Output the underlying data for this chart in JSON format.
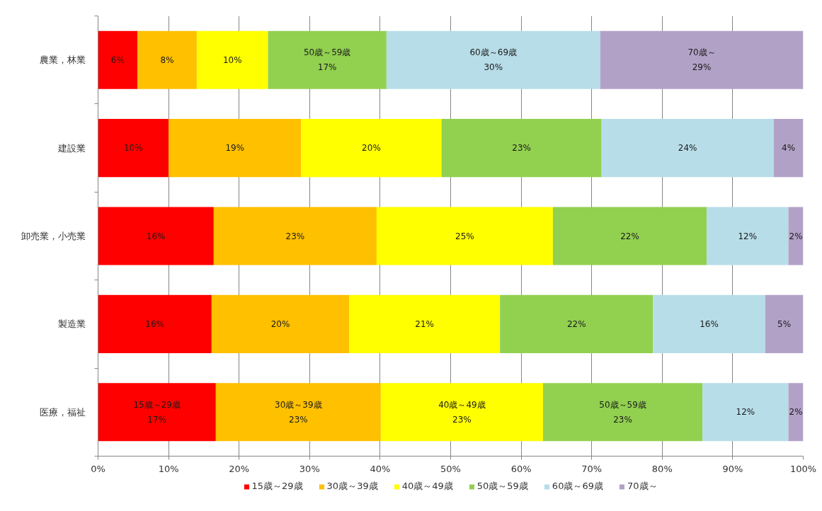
{
  "chart_data": {
    "type": "bar",
    "orientation": "horizontal",
    "stacked": true,
    "categories": [
      "農業，林業",
      "建設業",
      "卸売業，小売業",
      "製造業",
      "医療，福祉"
    ],
    "series": [
      {
        "name": "15歳～29歳",
        "color": "#ff0000",
        "values": [
          5.6,
          10.0,
          16.4,
          16.1,
          16.7
        ],
        "value_labels": [
          "6%",
          "10%",
          "16%",
          "16%",
          "15歳～29歳\n17%"
        ]
      },
      {
        "name": "30歳～39歳",
        "color": "#ffc000",
        "values": [
          8.4,
          18.8,
          23.1,
          19.5,
          23.4
        ],
        "value_labels": [
          "8%",
          "19%",
          "23%",
          "20%",
          "30歳～39歳\n23%"
        ]
      },
      {
        "name": "40歳～49歳",
        "color": "#ffff00",
        "values": [
          10.1,
          19.9,
          25.0,
          21.4,
          23.0
        ],
        "value_labels": [
          "10%",
          "20%",
          "25%",
          "21%",
          "40歳～49歳\n23%"
        ]
      },
      {
        "name": "50歳～59歳",
        "color": "#92d050",
        "values": [
          16.8,
          22.7,
          21.8,
          21.7,
          22.6
        ],
        "value_labels": [
          "50歳～59歳\n17%",
          "23%",
          "22%",
          "22%",
          "50歳～59歳\n23%"
        ]
      },
      {
        "name": "60歳～69歳",
        "color": "#b7dde8",
        "values": [
          30.3,
          24.4,
          11.6,
          15.9,
          12.2
        ],
        "value_labels": [
          "60歳～69歳\n30%",
          "24%",
          "12%",
          "16%",
          "12%"
        ]
      },
      {
        "name": "70歳～",
        "color": "#b2a1c7",
        "values": [
          28.8,
          4.2,
          2.1,
          5.4,
          2.1
        ],
        "value_labels": [
          "70歳～\n29%",
          "4%",
          "2%",
          "5%",
          "2%"
        ]
      }
    ],
    "xlim": [
      0,
      100
    ],
    "xticks": [
      {
        "value": 0,
        "label": "0%"
      },
      {
        "value": 10,
        "label": "10%"
      },
      {
        "value": 20,
        "label": "20%"
      },
      {
        "value": 30,
        "label": "30%"
      },
      {
        "value": 40,
        "label": "40%"
      },
      {
        "value": 50,
        "label": "50%"
      },
      {
        "value": 60,
        "label": "60%"
      },
      {
        "value": 70,
        "label": "70%"
      },
      {
        "value": 80,
        "label": "80%"
      },
      {
        "value": 90,
        "label": "90%"
      },
      {
        "value": 100,
        "label": "100%"
      }
    ],
    "grid": "x",
    "legend": "bottom"
  }
}
